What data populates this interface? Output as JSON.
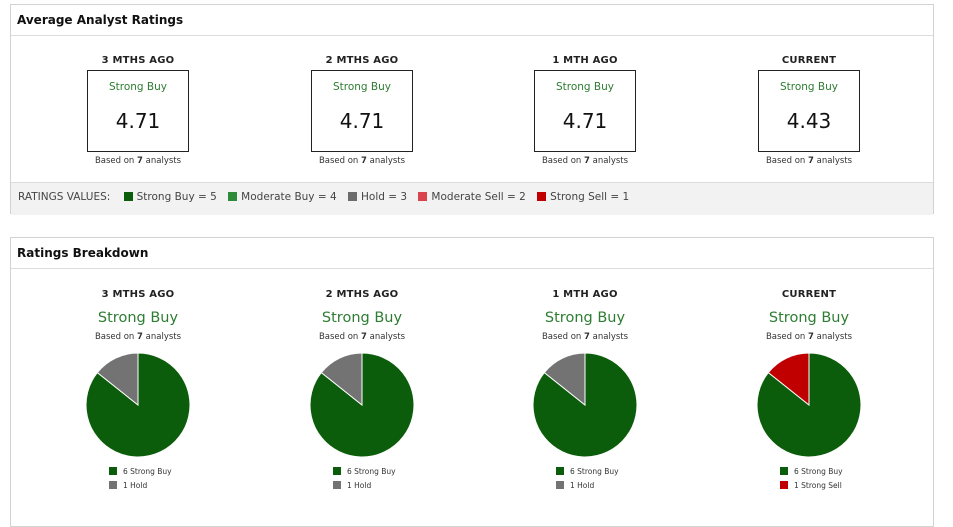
{
  "average_panel": {
    "title": "Average Analyst Ratings",
    "columns": [
      {
        "period": "3 MTHS AGO",
        "label": "Strong Buy",
        "score": "4.71",
        "based_prefix": "Based on ",
        "analysts": "7",
        "based_suffix": " analysts"
      },
      {
        "period": "2 MTHS AGO",
        "label": "Strong Buy",
        "score": "4.71",
        "based_prefix": "Based on ",
        "analysts": "7",
        "based_suffix": " analysts"
      },
      {
        "period": "1 MTH AGO",
        "label": "Strong Buy",
        "score": "4.71",
        "based_prefix": "Based on ",
        "analysts": "7",
        "based_suffix": " analysts"
      },
      {
        "period": "CURRENT",
        "label": "Strong Buy",
        "score": "4.43",
        "based_prefix": "Based on ",
        "analysts": "7",
        "based_suffix": " analysts"
      }
    ],
    "ratings_values": {
      "title": "RATINGS VALUES:",
      "items": [
        {
          "text": "Strong Buy = 5",
          "color": "#0b5d0b"
        },
        {
          "text": "Moderate Buy = 4",
          "color": "#2e8b3a"
        },
        {
          "text": "Hold = 3",
          "color": "#6b6b6b"
        },
        {
          "text": "Moderate Sell = 2",
          "color": "#d9434e"
        },
        {
          "text": "Strong Sell = 1",
          "color": "#c00000"
        }
      ]
    }
  },
  "breakdown_panel": {
    "title": "Ratings Breakdown",
    "columns": [
      {
        "period": "3 MTHS AGO",
        "label": "Strong Buy",
        "based_prefix": "Based on ",
        "analysts": "7",
        "based_suffix": " analysts",
        "slices": [
          {
            "legend": "6 Strong Buy",
            "count": 6,
            "color": "#0b5d0b"
          },
          {
            "legend": "1 Hold",
            "count": 1,
            "color": "#737373"
          }
        ]
      },
      {
        "period": "2 MTHS AGO",
        "label": "Strong Buy",
        "based_prefix": "Based on ",
        "analysts": "7",
        "based_suffix": " analysts",
        "slices": [
          {
            "legend": "6 Strong Buy",
            "count": 6,
            "color": "#0b5d0b"
          },
          {
            "legend": "1 Hold",
            "count": 1,
            "color": "#737373"
          }
        ]
      },
      {
        "period": "1 MTH AGO",
        "label": "Strong Buy",
        "based_prefix": "Based on ",
        "analysts": "7",
        "based_suffix": " analysts",
        "slices": [
          {
            "legend": "6 Strong Buy",
            "count": 6,
            "color": "#0b5d0b"
          },
          {
            "legend": "1 Hold",
            "count": 1,
            "color": "#737373"
          }
        ]
      },
      {
        "period": "CURRENT",
        "label": "Strong Buy",
        "based_prefix": "Based on ",
        "analysts": "7",
        "based_suffix": " analysts",
        "slices": [
          {
            "legend": "6 Strong Buy",
            "count": 6,
            "color": "#0b5d0b"
          },
          {
            "legend": "1 Strong Sell",
            "count": 1,
            "color": "#c00000"
          }
        ]
      }
    ]
  }
}
